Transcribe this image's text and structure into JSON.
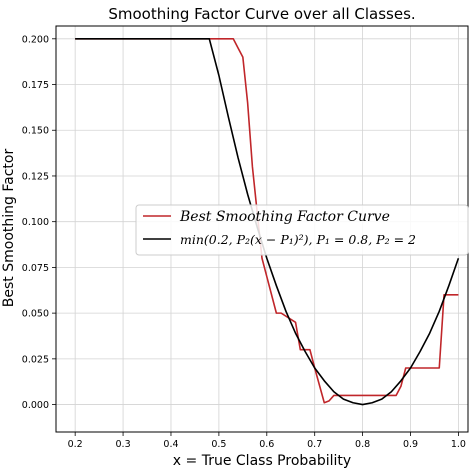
{
  "chart_data": {
    "type": "line",
    "title": "Smoothing Factor Curve over all Classes.",
    "xlabel": "x = True Class Probability",
    "ylabel": "Best Smoothing Factor",
    "xlim": [
      0.16,
      1.02
    ],
    "ylim": [
      -0.015,
      0.207
    ],
    "xticks": [
      "0.2",
      "0.3",
      "0.4",
      "0.5",
      "0.6",
      "0.7",
      "0.8",
      "0.9",
      "1.0"
    ],
    "yticks": [
      "0.000",
      "0.025",
      "0.050",
      "0.075",
      "0.100",
      "0.125",
      "0.150",
      "0.175",
      "0.200"
    ],
    "grid": true,
    "legend_position": "center-right",
    "series": [
      {
        "name": "Best Smoothing Factor Curve",
        "color": "#c0262a",
        "x": [
          0.2,
          0.53,
          0.54,
          0.55,
          0.56,
          0.57,
          0.58,
          0.59,
          0.6,
          0.62,
          0.63,
          0.66,
          0.67,
          0.69,
          0.7,
          0.72,
          0.73,
          0.74,
          0.84,
          0.86,
          0.87,
          0.88,
          0.89,
          0.96,
          0.97,
          1.0
        ],
        "y": [
          0.2,
          0.2,
          0.195,
          0.19,
          0.165,
          0.13,
          0.105,
          0.08,
          0.07,
          0.05,
          0.05,
          0.045,
          0.03,
          0.03,
          0.02,
          0.001,
          0.002,
          0.005,
          0.005,
          0.005,
          0.005,
          0.01,
          0.02,
          0.02,
          0.06,
          0.06
        ]
      },
      {
        "name": "min(0.2, P2(x − P1)^2), P1 = 0.8, P2 = 2",
        "color": "#000000",
        "x": [
          0.2,
          0.48,
          0.5,
          0.52,
          0.54,
          0.56,
          0.58,
          0.6,
          0.62,
          0.64,
          0.66,
          0.68,
          0.7,
          0.72,
          0.74,
          0.76,
          0.78,
          0.8,
          0.82,
          0.84,
          0.86,
          0.88,
          0.9,
          0.92,
          0.94,
          0.96,
          0.98,
          1.0
        ],
        "y": [
          0.2,
          0.2,
          0.18,
          0.157,
          0.135,
          0.115,
          0.097,
          0.08,
          0.065,
          0.051,
          0.039,
          0.029,
          0.02,
          0.013,
          0.007,
          0.003,
          0.001,
          0.0,
          0.001,
          0.003,
          0.007,
          0.013,
          0.02,
          0.029,
          0.039,
          0.051,
          0.065,
          0.08
        ]
      }
    ],
    "legend": [
      {
        "label": "Best Smoothing Factor Curve",
        "color": "#c0262a"
      },
      {
        "label": "min(0.2, P₂(x − P₁)²), P₁ = 0.8, P₂ = 2",
        "color": "#000000"
      }
    ]
  }
}
